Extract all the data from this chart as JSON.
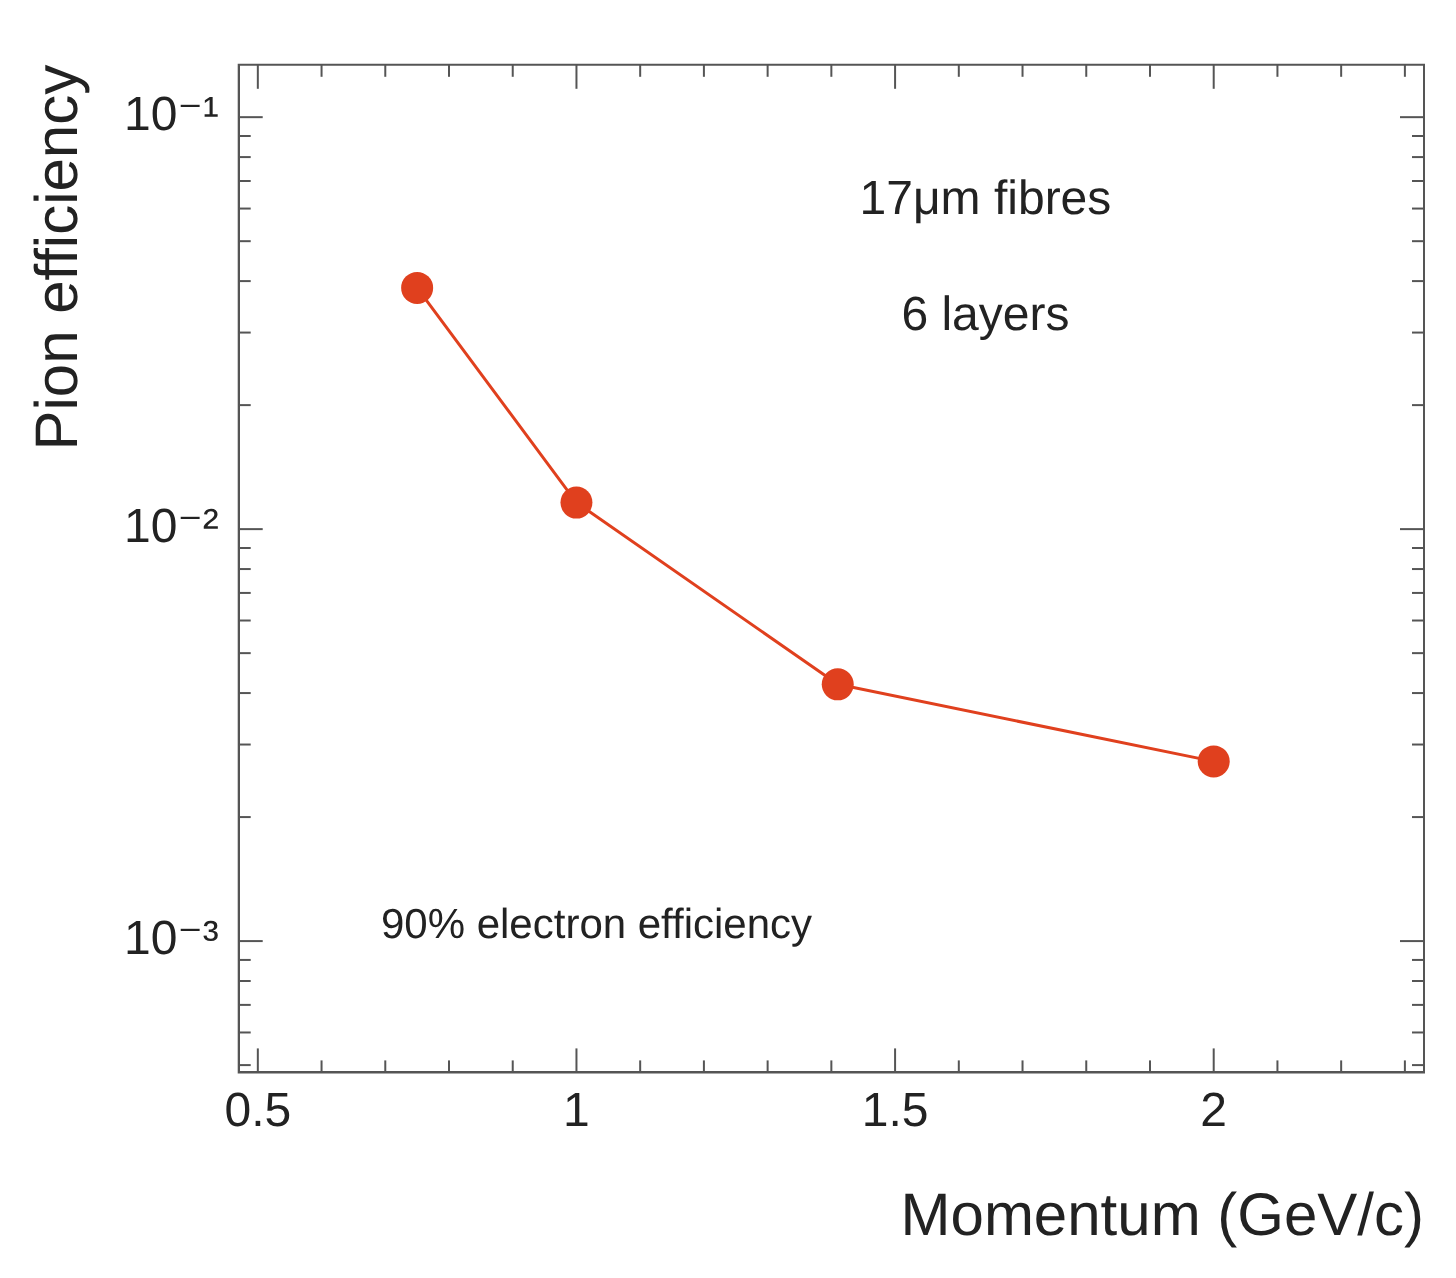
{
  "chart_data": {
    "type": "line",
    "xlabel": "Momentum (GeV/c)",
    "ylabel": "Pion efficiency",
    "annotations": [
      "17μm fibres",
      "6 layers",
      "90% electron efficiency"
    ],
    "x": [
      0.75,
      1,
      1.41,
      2
    ],
    "series": [
      {
        "color": "#e0401e",
        "values": [
          0.0385,
          0.0116,
          0.0042,
          0.00273
        ]
      }
    ],
    "log": "y",
    "grid": false,
    "legend": false,
    "marker": "circle",
    "line_style": "solid",
    "xlim": [
      0.47,
      2.33
    ],
    "xticks": [
      {
        "value": 0.5,
        "label": "0.5"
      },
      {
        "value": 0.6,
        "label": null
      },
      {
        "value": 0.7,
        "label": null
      },
      {
        "value": 0.8,
        "label": null
      },
      {
        "value": 0.9,
        "label": null
      },
      {
        "value": 1,
        "label": "1"
      },
      {
        "value": 1.1,
        "label": null
      },
      {
        "value": 1.2,
        "label": null
      },
      {
        "value": 1.3,
        "label": null
      },
      {
        "value": 1.4,
        "label": null
      },
      {
        "value": 1.5,
        "label": "1.5"
      },
      {
        "value": 1.6,
        "label": null
      },
      {
        "value": 1.7,
        "label": null
      },
      {
        "value": 1.8,
        "label": null
      },
      {
        "value": 1.9,
        "label": null
      },
      {
        "value": 2,
        "label": "2"
      },
      {
        "value": 2.1,
        "label": null
      },
      {
        "value": 2.2,
        "label": null
      },
      {
        "value": 2.3,
        "label": null
      }
    ],
    "ylim": [
      0.00048,
      0.134
    ],
    "yticks": [
      {
        "value": 0.0005,
        "label": null
      },
      {
        "value": 0.0006,
        "label": null
      },
      {
        "value": 0.0007,
        "label": null
      },
      {
        "value": 0.0008,
        "label": null
      },
      {
        "value": 0.0009,
        "label": null
      },
      {
        "value": 0.001,
        "label": "10⁻³"
      },
      {
        "value": 0.002,
        "label": null
      },
      {
        "value": 0.003,
        "label": null
      },
      {
        "value": 0.004,
        "label": null
      },
      {
        "value": 0.005,
        "label": null
      },
      {
        "value": 0.006,
        "label": null
      },
      {
        "value": 0.007,
        "label": null
      },
      {
        "value": 0.008,
        "label": null
      },
      {
        "value": 0.009,
        "label": null
      },
      {
        "value": 0.01,
        "label": "10⁻²"
      },
      {
        "value": 0.02,
        "label": null
      },
      {
        "value": 0.03,
        "label": null
      },
      {
        "value": 0.04,
        "label": null
      },
      {
        "value": 0.05,
        "label": null
      },
      {
        "value": 0.06,
        "label": null
      },
      {
        "value": 0.07,
        "label": null
      },
      {
        "value": 0.08,
        "label": null
      },
      {
        "value": 0.09,
        "label": null
      },
      {
        "value": 0.1,
        "label": "10⁻¹"
      }
    ]
  }
}
